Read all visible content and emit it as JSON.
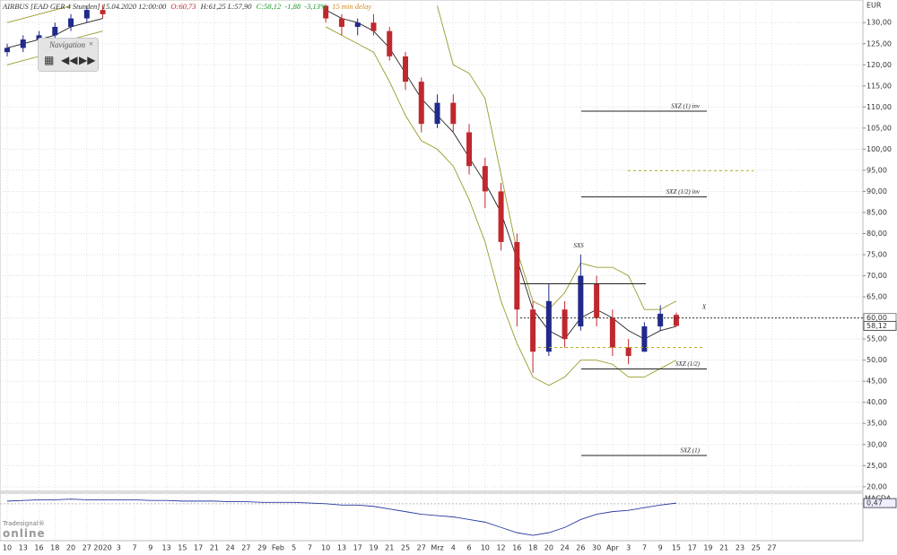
{
  "chart_data": {
    "type": "candlestick",
    "title": "AIRBUS [EAD GER 4 Stunden] 15.04.2020 12:00:00",
    "quote": {
      "open": "O:60,73",
      "high": "H:61,25",
      "low": "L:57,90",
      "close": "C:58,12",
      "change": "-1,88",
      "change_pct": "-3,13%",
      "delay": "15 min delay"
    },
    "currency": "EUR",
    "navigation": "Navigation",
    "logo": {
      "small": "Tradesignal®",
      "big": "online"
    },
    "categories": [
      "10",
      "13",
      "16",
      "18",
      "20",
      "27",
      "2020",
      "3",
      "7",
      "9",
      "13",
      "15",
      "17",
      "21",
      "24",
      "27",
      "29",
      "Feb",
      "5",
      "7",
      "10",
      "13",
      "17",
      "19",
      "21",
      "25",
      "27",
      "Mrz",
      "4",
      "6",
      "10",
      "12",
      "16",
      "18",
      "20",
      "24",
      "26",
      "30",
      "Apr",
      "3",
      "7",
      "9",
      "15",
      "17",
      "19",
      "21",
      "23",
      "25",
      "27"
    ],
    "open": [
      123,
      124,
      126,
      127,
      129,
      131,
      133,
      null,
      null,
      null,
      null,
      null,
      null,
      null,
      null,
      null,
      null,
      null,
      null,
      null,
      134,
      131,
      129,
      130,
      128,
      122,
      116,
      106,
      111,
      104,
      96,
      90,
      78,
      62,
      52,
      62,
      58,
      68,
      60,
      53,
      52,
      58,
      60.73,
      null,
      null,
      null,
      null,
      null,
      null
    ],
    "high": [
      125,
      127,
      128,
      130,
      132,
      134,
      134.2,
      null,
      null,
      null,
      null,
      null,
      null,
      null,
      null,
      null,
      null,
      null,
      null,
      null,
      134.2,
      132,
      131,
      132,
      129,
      123,
      117,
      113,
      113,
      106,
      98,
      92,
      80,
      64,
      68,
      64,
      75,
      70,
      62,
      55,
      59,
      63,
      61.25,
      null,
      null,
      null,
      null,
      null,
      null
    ],
    "low": [
      122,
      123,
      125,
      126,
      128,
      130,
      131,
      null,
      null,
      null,
      null,
      null,
      null,
      null,
      null,
      null,
      null,
      null,
      null,
      null,
      130,
      127,
      127,
      127,
      121,
      114,
      104,
      105,
      104,
      94,
      86,
      76,
      58,
      47,
      51,
      53,
      57,
      58,
      51,
      49,
      52,
      57,
      57.9,
      null,
      null,
      null,
      null,
      null,
      null
    ],
    "close": [
      124,
      126,
      127,
      129,
      131,
      133,
      132,
      null,
      null,
      null,
      null,
      null,
      null,
      null,
      null,
      null,
      null,
      null,
      null,
      null,
      131,
      129,
      130,
      128,
      122,
      116,
      106,
      111,
      106,
      96,
      90,
      78,
      62,
      52,
      64,
      55,
      70,
      60,
      53,
      51,
      58,
      61,
      58.12,
      null,
      null,
      null,
      null,
      null,
      null
    ],
    "up_color": "#1f2a8a",
    "down_color": "#c0282e",
    "bands": [
      {
        "color": "#9a9a2a",
        "values": [
          130,
          131,
          132,
          133,
          134,
          null,
          null,
          null,
          null,
          null,
          null,
          null,
          null,
          null,
          null,
          null,
          null,
          null,
          null,
          null,
          null,
          null,
          null,
          null,
          null,
          null,
          null,
          134,
          120,
          118,
          112,
          94,
          76,
          64,
          62,
          66,
          73,
          72,
          72,
          70,
          62,
          62,
          64,
          null,
          null,
          null,
          null,
          null,
          null
        ]
      },
      {
        "color": "#9a9a2a",
        "values": [
          120,
          121,
          122,
          124,
          126,
          127,
          128,
          null,
          null,
          null,
          null,
          null,
          null,
          null,
          null,
          null,
          null,
          null,
          null,
          null,
          129,
          127,
          125,
          123,
          116,
          108,
          102,
          100,
          96,
          88,
          78,
          64,
          54,
          46,
          44,
          46,
          50,
          50,
          49,
          46,
          46,
          48,
          50,
          null,
          null,
          null,
          null,
          null,
          null
        ]
      },
      {
        "color": "#222222",
        "values": [
          124,
          125,
          126,
          127,
          129,
          130,
          131,
          null,
          null,
          null,
          null,
          null,
          null,
          null,
          null,
          null,
          null,
          null,
          null,
          null,
          133,
          131,
          130,
          128,
          124,
          118,
          112,
          108,
          104,
          98,
          92,
          85,
          74,
          62,
          57,
          55,
          60,
          62,
          60,
          57,
          55,
          57,
          58,
          null,
          null,
          null,
          null,
          null,
          null
        ]
      }
    ],
    "ylim": [
      18.9,
      134.3
    ],
    "yticks": [
      {
        "value": 20,
        "label": "20,00"
      },
      {
        "value": 25,
        "label": "25,00"
      },
      {
        "value": 30,
        "label": "30,00"
      },
      {
        "value": 35,
        "label": "35,00"
      },
      {
        "value": 40,
        "label": "40,00"
      },
      {
        "value": 45,
        "label": "45,00"
      },
      {
        "value": 50,
        "label": "50,00"
      },
      {
        "value": 55,
        "label": "55,00"
      },
      {
        "value": 60,
        "label": "60,00"
      },
      {
        "value": 65,
        "label": "65,00"
      },
      {
        "value": 70,
        "label": "70,00"
      },
      {
        "value": 75,
        "label": "75,00"
      },
      {
        "value": 80,
        "label": "80,00"
      },
      {
        "value": 85,
        "label": "85,00"
      },
      {
        "value": 90,
        "label": "90,00"
      },
      {
        "value": 95,
        "label": "95,00"
      },
      {
        "value": 100,
        "label": "100,00"
      },
      {
        "value": 105,
        "label": "105,00"
      },
      {
        "value": 110,
        "label": "110,00"
      },
      {
        "value": 115,
        "label": "115,00"
      },
      {
        "value": 120,
        "label": "120,00"
      },
      {
        "value": 125,
        "label": "125,00"
      },
      {
        "value": 130,
        "label": "130,00"
      }
    ],
    "grid": true,
    "last": {
      "value": 58.12,
      "label": "58,12"
    },
    "levels": [
      {
        "label": "SXZ (1) inv",
        "value": 109,
        "color": "#222222"
      },
      {
        "label": "SXZ (1/2) inv",
        "value": 88.7,
        "color": "#222222"
      },
      {
        "value": 94.9,
        "style": "dashed",
        "color": "#b5b020"
      },
      {
        "value": 68.1,
        "color": "#222222"
      },
      {
        "value": 60,
        "tag": "60,00",
        "style": "dotted",
        "color": "#333333"
      },
      {
        "value": 53,
        "style": "dashed",
        "color": "#b5b020"
      },
      {
        "label": "SXZ (1/2)",
        "value": 47.9,
        "color": "#222222"
      },
      {
        "label": "SXZ (1)",
        "value": 27.4,
        "color": "#222222"
      }
    ],
    "annotations": [
      {
        "text": "SXS",
        "value": 77
      },
      {
        "text": "X",
        "value": 62.5
      }
    ],
    "macd": {
      "label": "MACDA",
      "color": "#2a3aa0",
      "ylim": [
        -26,
        6
      ],
      "values": [
        2,
        2.5,
        3,
        3,
        3.5,
        3,
        3,
        3,
        3,
        2.5,
        2.5,
        2,
        2,
        2,
        1.5,
        1.5,
        1,
        1,
        1,
        0.5,
        0,
        -1,
        -1,
        -2,
        -4,
        -6,
        -8,
        -9,
        -10,
        -12,
        -14,
        -18,
        -22,
        -24,
        -22,
        -18,
        -12,
        -8,
        -6,
        -5,
        -3,
        -1,
        0.47,
        null,
        null,
        null,
        null,
        null,
        null
      ],
      "last": {
        "value": 0.47,
        "label": "0,47"
      }
    }
  }
}
